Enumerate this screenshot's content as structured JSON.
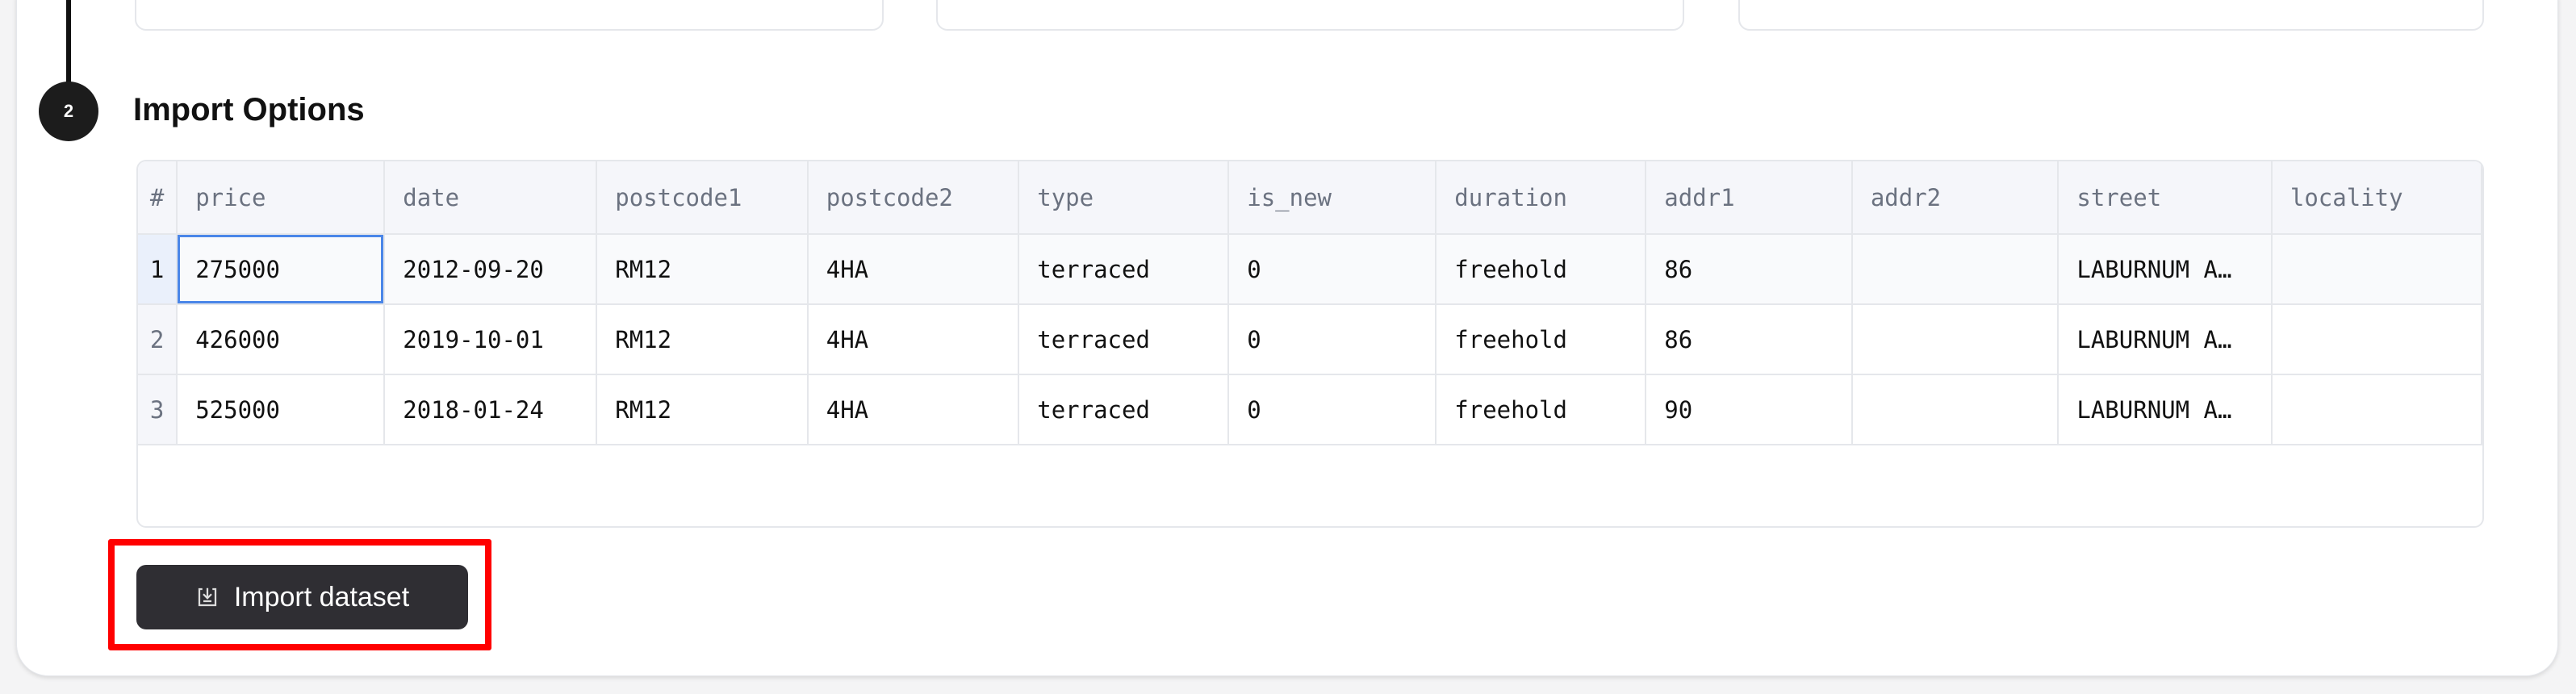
{
  "step": {
    "number": "2",
    "title": "Import Options"
  },
  "table": {
    "columns": [
      "#",
      "price",
      "date",
      "postcode1",
      "postcode2",
      "type",
      "is_new",
      "duration",
      "addr1",
      "addr2",
      "street",
      "locality"
    ],
    "rows": [
      [
        "1",
        "275000",
        "2012-09-20",
        "RM12",
        "4HA",
        "terraced",
        "0",
        "freehold",
        "86",
        "",
        "LABURNUM A…",
        ""
      ],
      [
        "2",
        "426000",
        "2019-10-01",
        "RM12",
        "4HA",
        "terraced",
        "0",
        "freehold",
        "86",
        "",
        "LABURNUM A…",
        ""
      ],
      [
        "3",
        "525000",
        "2018-01-24",
        "RM12",
        "4HA",
        "terraced",
        "0",
        "freehold",
        "90",
        "",
        "LABURNUM A…",
        ""
      ]
    ]
  },
  "import_button": {
    "label": "Import dataset",
    "icon": "download-tray-icon"
  },
  "colors": {
    "button_bg": "#2f2e33",
    "highlight": "#ff0000",
    "selected_cell": "#4a86e8"
  }
}
